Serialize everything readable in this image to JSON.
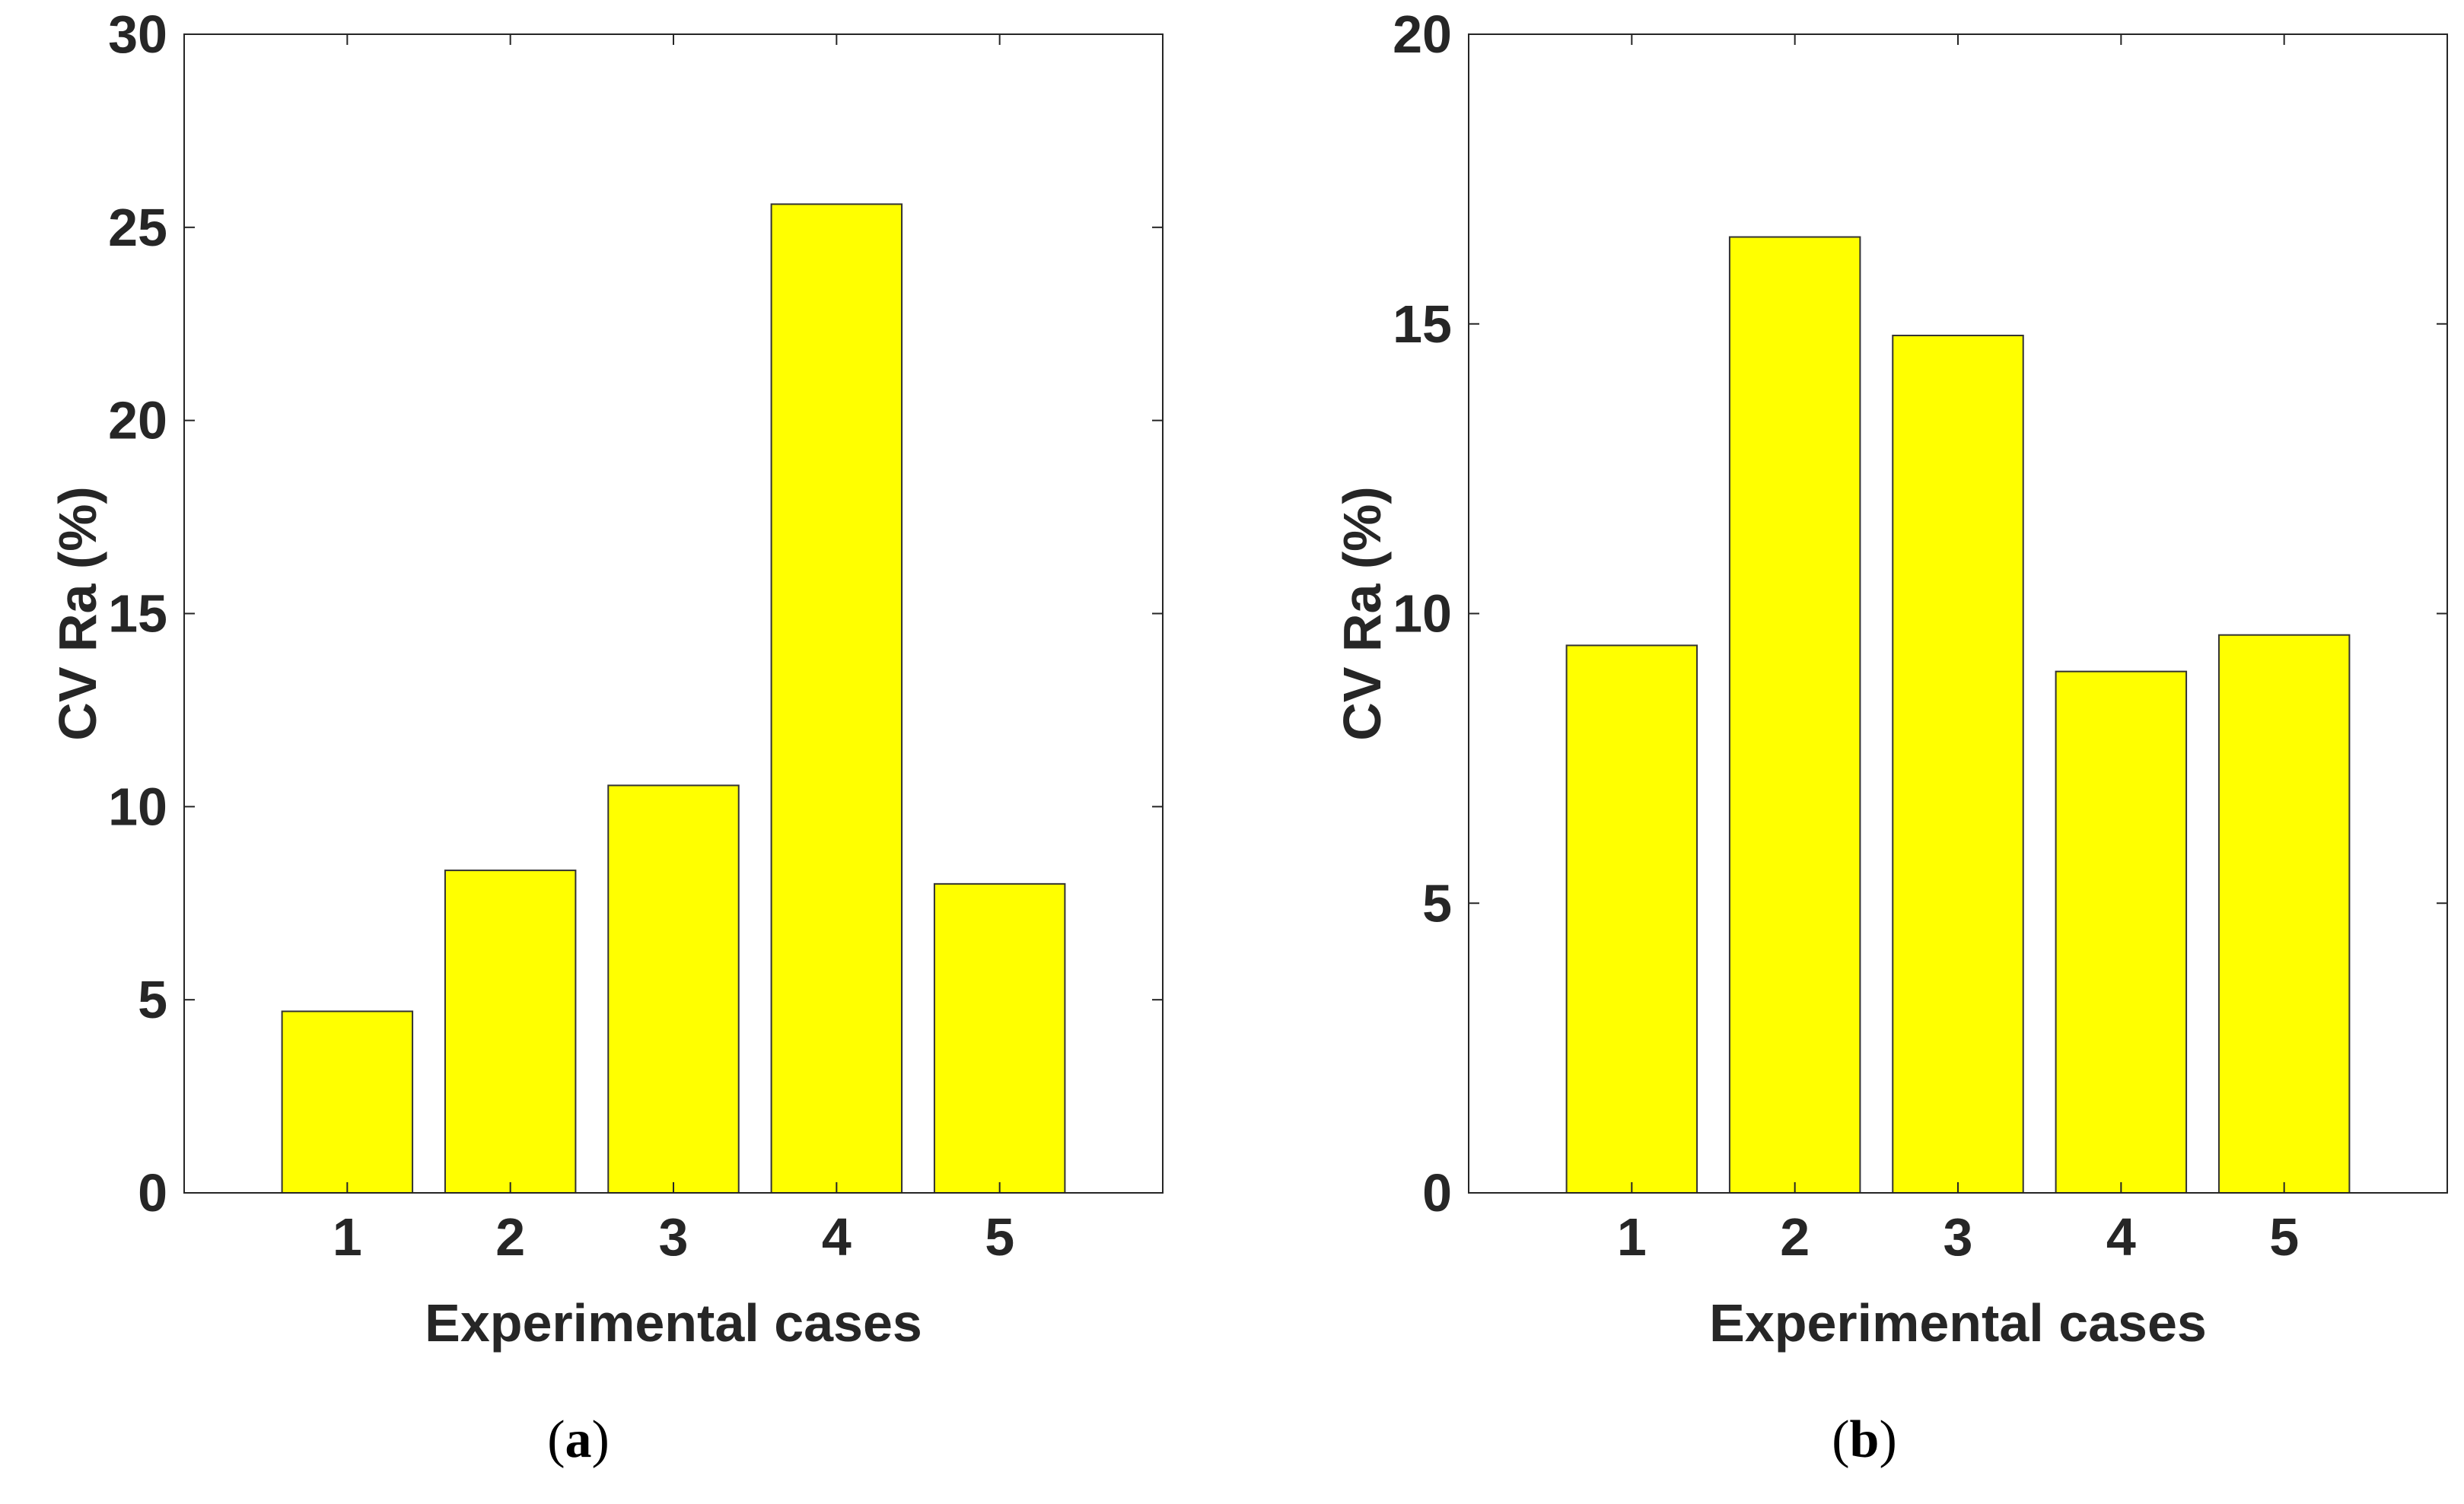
{
  "colors": {
    "bar_fill": "#ffff00",
    "bar_stroke": "#333333",
    "axis": "#262626",
    "background": "#ffffff"
  },
  "chart_data": [
    {
      "panel": "a",
      "type": "bar",
      "title": "",
      "xlabel": "Experimental cases",
      "ylabel": "CV Ra (%)",
      "categories": [
        "1",
        "2",
        "3",
        "4",
        "5"
      ],
      "values": [
        4.7,
        8.35,
        10.55,
        25.6,
        8.0
      ],
      "ylim": [
        0,
        30
      ],
      "xlim": [
        0,
        6
      ],
      "yticks": [
        0,
        5,
        10,
        15,
        20,
        25,
        30
      ],
      "grid": false,
      "caption": {
        "open": "(",
        "letter": "a",
        "close": ")"
      }
    },
    {
      "panel": "b",
      "type": "bar",
      "title": "",
      "xlabel": "Experimental cases",
      "ylabel": "CV Ra (%)",
      "categories": [
        "1",
        "2",
        "3",
        "4",
        "5"
      ],
      "values": [
        9.45,
        16.5,
        14.8,
        9.0,
        9.63
      ],
      "ylim": [
        0,
        20
      ],
      "xlim": [
        0,
        6
      ],
      "yticks": [
        0,
        5,
        10,
        15,
        20
      ],
      "grid": false,
      "caption": {
        "open": "(",
        "letter": "b",
        "close": ")"
      }
    }
  ]
}
